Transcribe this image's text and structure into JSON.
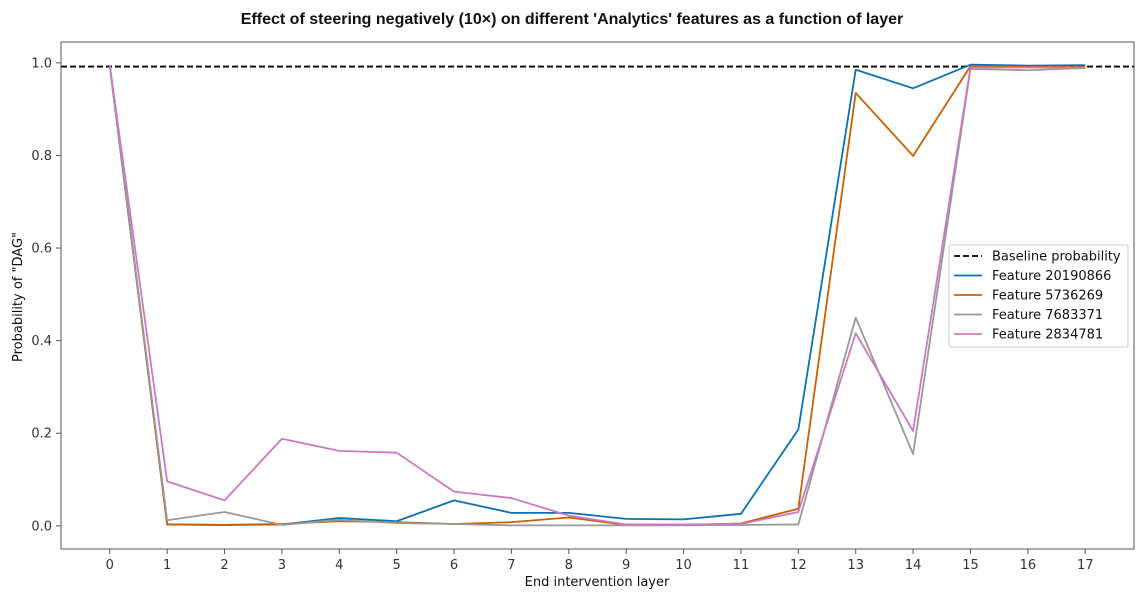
{
  "chart_data": {
    "type": "line",
    "title": "Effect of steering negatively (10×) on different 'Analytics' features as a function of layer",
    "xlabel": "End intervention layer",
    "ylabel": "Probability of \"DAG\"",
    "x": [
      0,
      1,
      2,
      3,
      4,
      5,
      6,
      7,
      8,
      9,
      10,
      11,
      12,
      13,
      14,
      15,
      16,
      17
    ],
    "xlim": [
      -0.85,
      17.85
    ],
    "ylim": [
      -0.05,
      1.045
    ],
    "yticks": [
      0.0,
      0.2,
      0.4,
      0.6,
      0.8,
      1.0
    ],
    "grid": false,
    "legend_position": "center-right",
    "baseline": {
      "name": "Baseline probability",
      "value": 0.992,
      "color": "#000000",
      "style": "dashed"
    },
    "series": [
      {
        "name": "Feature 20190866",
        "color": "#0a72b0",
        "values": [
          0.995,
          0.003,
          0.002,
          0.003,
          0.017,
          0.01,
          0.055,
          0.028,
          0.028,
          0.015,
          0.014,
          0.026,
          0.208,
          0.985,
          0.945,
          0.996,
          0.994,
          0.995
        ]
      },
      {
        "name": "Feature 5736269",
        "color": "#cc5f00",
        "values": [
          0.995,
          0.003,
          0.002,
          0.004,
          0.01,
          0.008,
          0.004,
          0.008,
          0.018,
          0.002,
          0.002,
          0.005,
          0.037,
          0.935,
          0.799,
          0.993,
          0.991,
          0.991
        ]
      },
      {
        "name": "Feature 7683371",
        "color": "#999999",
        "values": [
          0.995,
          0.012,
          0.03,
          0.002,
          0.013,
          0.006,
          0.004,
          0.001,
          0.001,
          0.001,
          0.001,
          0.002,
          0.003,
          0.45,
          0.155,
          0.987,
          0.984,
          0.989
        ]
      },
      {
        "name": "Feature 2834781",
        "color": "#cc79c4",
        "values": [
          0.995,
          0.096,
          0.055,
          0.188,
          0.162,
          0.158,
          0.074,
          0.06,
          0.022,
          0.003,
          0.003,
          0.004,
          0.03,
          0.416,
          0.205,
          0.99,
          0.99,
          0.99
        ]
      }
    ]
  }
}
